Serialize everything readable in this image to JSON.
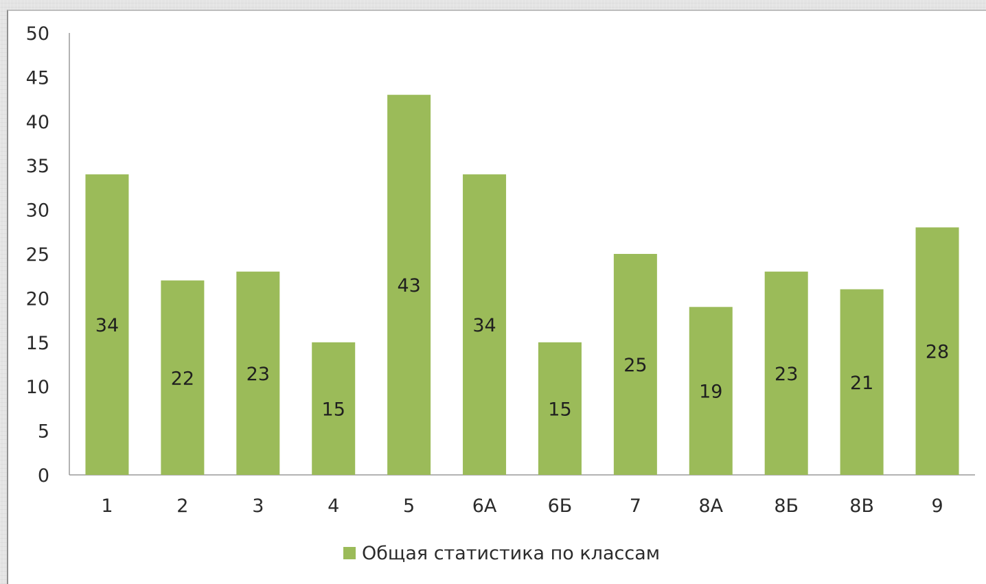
{
  "chart_data": {
    "type": "bar",
    "categories": [
      "1",
      "2",
      "3",
      "4",
      "5",
      "6А",
      "6Б",
      "7",
      "8А",
      "8Б",
      "8В",
      "9"
    ],
    "series": [
      {
        "name": "Общая статистика по классам",
        "values": [
          34,
          22,
          23,
          15,
          43,
          34,
          15,
          25,
          19,
          23,
          21,
          28
        ],
        "color": "#9bbb59"
      }
    ],
    "ylim": [
      0,
      50
    ],
    "yticks": [
      0,
      5,
      10,
      15,
      20,
      25,
      30,
      35,
      40,
      45,
      50
    ],
    "grid": false,
    "legend": "bottom",
    "data_labels": "inside-center"
  }
}
